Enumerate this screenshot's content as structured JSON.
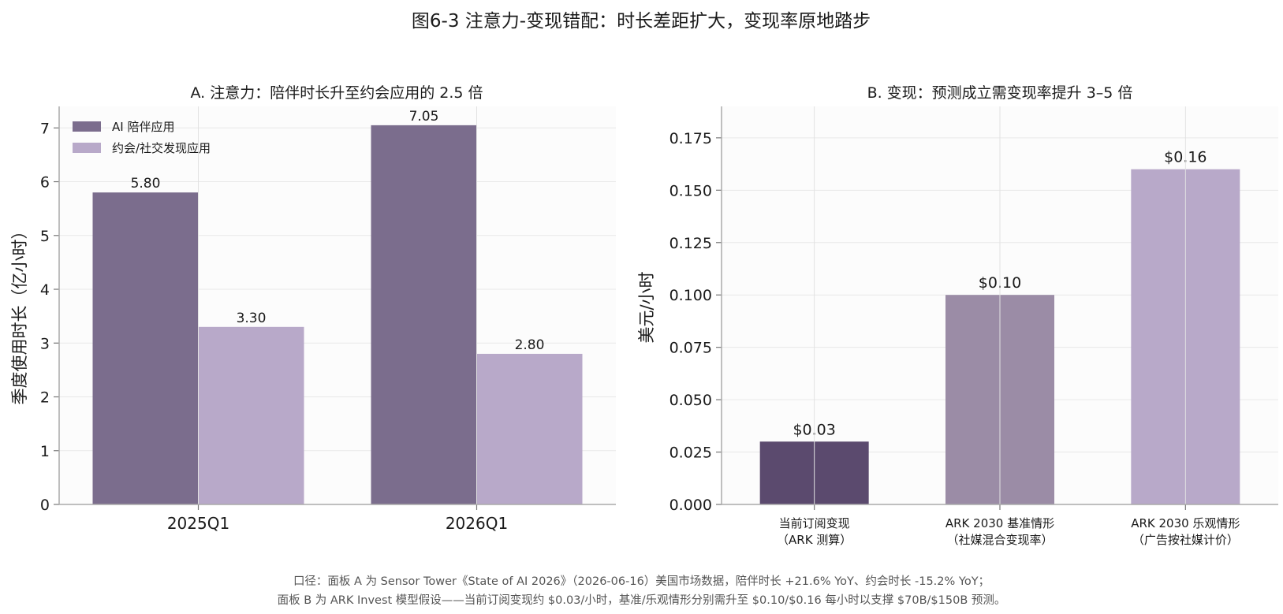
{
  "figure_title": "图6-3  注意力-变现错配：时长差距扩大，变现率原地踏步",
  "chart_data": [
    {
      "type": "bar",
      "title": "A. 注意力：陪伴时长升至约会应用的 2.5 倍",
      "xlabel": "",
      "ylabel": "季度使用时长（亿小时）",
      "categories": [
        "2025Q1",
        "2026Q1"
      ],
      "series": [
        {
          "name": "AI 陪伴应用",
          "values": [
            5.8,
            7.05
          ],
          "labels": [
            "5.80",
            "7.05"
          ],
          "color": "#7b6d8d"
        },
        {
          "name": "约会/社交发现应用",
          "values": [
            3.3,
            2.8
          ],
          "labels": [
            "3.30",
            "2.80"
          ],
          "color": "#b8a9c9"
        }
      ],
      "ylim": [
        0,
        7.4
      ],
      "yticks": [
        0,
        1,
        2,
        3,
        4,
        5,
        6,
        7
      ],
      "ytick_labels": [
        "0",
        "1",
        "2",
        "3",
        "4",
        "5",
        "6",
        "7"
      ],
      "grid": true,
      "legend_position": "top-left"
    },
    {
      "type": "bar",
      "title": "B. 变现：预测成立需变现率提升 3–5 倍",
      "xlabel": "",
      "ylabel": "美元/小时",
      "categories": [
        [
          "当前订阅变现",
          "（ARK 测算）"
        ],
        [
          "ARK 2030 基准情形",
          "（社媒混合变现率）"
        ],
        [
          "ARK 2030 乐观情形",
          "（广告按社媒计价）"
        ]
      ],
      "values": [
        0.03,
        0.1,
        0.16
      ],
      "labels": [
        "$0.03",
        "$0.10",
        "$0.16"
      ],
      "colors": [
        "#5b4a6e",
        "#9b8ca6",
        "#b8a9c9"
      ],
      "ylim": [
        0,
        0.19
      ],
      "yticks": [
        0,
        0.025,
        0.05,
        0.075,
        0.1,
        0.125,
        0.15,
        0.175
      ],
      "ytick_labels": [
        "0.000",
        "0.025",
        "0.050",
        "0.075",
        "0.100",
        "0.125",
        "0.150",
        "0.175"
      ],
      "grid": true
    }
  ],
  "footnote": {
    "line1": "口径：面板 A 为 Sensor Tower《State of AI 2026》（2026-06-16）美国市场数据，陪伴时长 +21.6% YoY、约会时长 -15.2% YoY；",
    "line2": "面板 B 为 ARK Invest 模型假设——当前订阅变现约 $0.03/小时，基准/乐观情形分别需升至 $0.10/$0.16 每小时以支撑 $70B/$150B 预测。"
  }
}
